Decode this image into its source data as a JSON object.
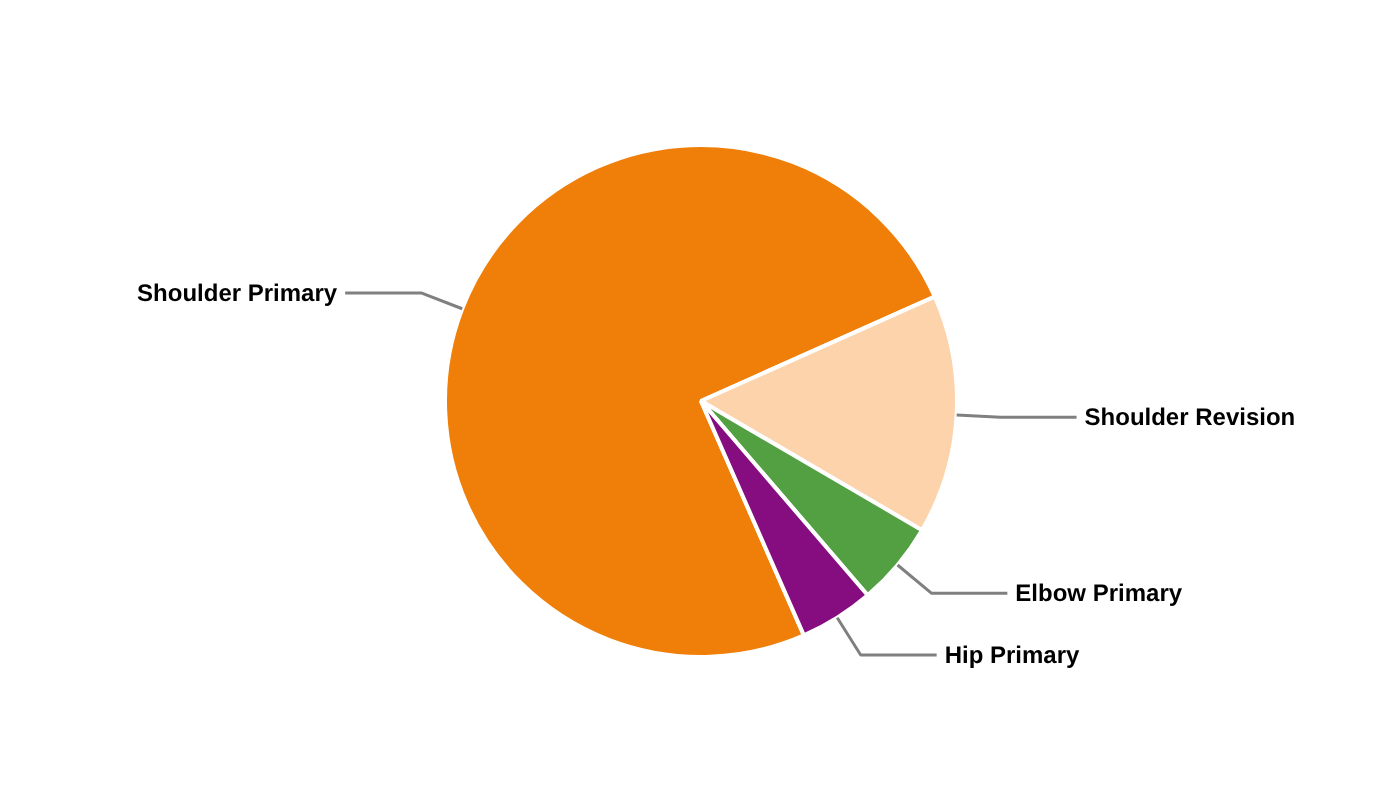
{
  "chart_data": {
    "type": "pie",
    "categories": [
      "Shoulder Primary",
      "Shoulder Revision",
      "Elbow Primary",
      "Hip Primary"
    ],
    "values": [
      74.9,
      15.1,
      5.3,
      4.7
    ],
    "colors": [
      "#f07f09",
      "#fcd3ab",
      "#53a042",
      "#850d7f"
    ],
    "legend": false
  }
}
